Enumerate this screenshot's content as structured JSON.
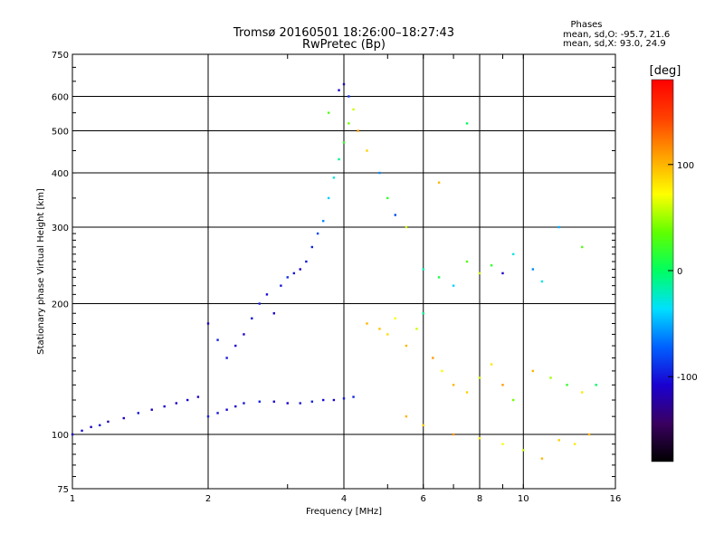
{
  "chart_data": {
    "type": "scatter",
    "title": "Tromsø 20160501 18:26:00–18:27:43",
    "subtitle": "RwPretec (Bp)",
    "xlabel": "Frequency [MHz]",
    "ylabel": "Stationary phase Virtual Height [km]",
    "x_scale": "log",
    "y_scale": "log",
    "xlim": [
      1,
      16
    ],
    "ylim": [
      75,
      750
    ],
    "x_ticks": [
      "1",
      "2",
      "4",
      "6",
      "8",
      "10",
      "16"
    ],
    "x_tick_values": [
      1,
      2,
      4,
      6,
      8,
      10,
      16
    ],
    "y_ticks": [
      "75",
      "100",
      "200",
      "300",
      "400",
      "500",
      "600",
      "750"
    ],
    "y_tick_values": [
      75,
      100,
      200,
      300,
      400,
      500,
      600,
      750
    ],
    "grid": true,
    "phase_stats": {
      "heading": "Phases",
      "o_line": "mean, sd,O: -95.7, 21.6",
      "x_line": "mean, sd,X:  93.0, 24.9"
    },
    "colorbar": {
      "label": "[deg]",
      "range": [
        -180,
        180
      ],
      "tick_labels": [
        "100",
        "0",
        "-100"
      ],
      "tick_values": [
        100,
        0,
        -100
      ],
      "colormap": [
        "#000000",
        "#3a0060",
        "#1a00d0",
        "#0060ff",
        "#00e0ff",
        "#00ff60",
        "#60ff00",
        "#ffff00",
        "#ffa000",
        "#ff4000",
        "#ff0000"
      ]
    },
    "series": [
      {
        "description": "dense low trace",
        "points": [
          [
            1.0,
            100,
            -110
          ],
          [
            1.05,
            102,
            -105
          ],
          [
            1.1,
            104,
            -115
          ],
          [
            1.15,
            105,
            -100
          ],
          [
            1.2,
            107,
            -120
          ],
          [
            1.3,
            109,
            -110
          ],
          [
            1.4,
            112,
            -100
          ],
          [
            1.5,
            114,
            -115
          ],
          [
            1.6,
            116,
            -108
          ],
          [
            1.7,
            118,
            -112
          ],
          [
            1.8,
            120,
            -105
          ],
          [
            1.9,
            122,
            -110
          ],
          [
            2.0,
            110,
            -95
          ],
          [
            2.1,
            112,
            -100
          ],
          [
            2.2,
            114,
            -105
          ],
          [
            2.3,
            116,
            -110
          ],
          [
            2.4,
            118,
            -100
          ],
          [
            2.6,
            119,
            -95
          ],
          [
            2.8,
            119,
            -105
          ],
          [
            3.0,
            118,
            -110
          ],
          [
            3.2,
            118,
            -100
          ],
          [
            3.4,
            119,
            -95
          ],
          [
            3.6,
            120,
            -105
          ],
          [
            3.8,
            120,
            -110
          ],
          [
            4.0,
            121,
            -100
          ],
          [
            4.2,
            122,
            -95
          ]
        ]
      },
      {
        "description": "rising main trace",
        "points": [
          [
            2.0,
            180,
            -110
          ],
          [
            2.1,
            165,
            -95
          ],
          [
            2.2,
            150,
            -100
          ],
          [
            2.3,
            160,
            -105
          ],
          [
            2.4,
            170,
            -110
          ],
          [
            2.5,
            185,
            -100
          ],
          [
            2.6,
            200,
            -95
          ],
          [
            2.7,
            210,
            -105
          ],
          [
            2.8,
            190,
            -110
          ],
          [
            2.9,
            220,
            -100
          ],
          [
            3.0,
            230,
            -90
          ],
          [
            3.1,
            235,
            -100
          ],
          [
            3.2,
            240,
            -110
          ],
          [
            3.3,
            250,
            -100
          ],
          [
            3.4,
            270,
            -95
          ],
          [
            3.5,
            290,
            -80
          ],
          [
            3.6,
            310,
            -60
          ],
          [
            3.7,
            350,
            -40
          ],
          [
            3.8,
            390,
            -30
          ],
          [
            3.9,
            430,
            -10
          ],
          [
            4.0,
            470,
            20
          ],
          [
            4.1,
            520,
            40
          ],
          [
            4.2,
            560,
            60
          ]
        ]
      },
      {
        "description": "high scattered points",
        "points": [
          [
            3.9,
            620,
            -110
          ],
          [
            4.0,
            640,
            -120
          ],
          [
            4.1,
            600,
            -90
          ],
          [
            3.7,
            550,
            30
          ],
          [
            4.3,
            500,
            110
          ],
          [
            4.5,
            450,
            90
          ],
          [
            4.8,
            400,
            -60
          ],
          [
            5.0,
            350,
            20
          ],
          [
            5.2,
            320,
            -80
          ],
          [
            5.5,
            300,
            60
          ],
          [
            6.5,
            380,
            100
          ],
          [
            7.5,
            520,
            0
          ],
          [
            9.5,
            260,
            -30
          ],
          [
            12.0,
            300,
            -50
          ],
          [
            13.5,
            270,
            30
          ]
        ]
      },
      {
        "description": "mid-frequency cluster",
        "points": [
          [
            4.5,
            180,
            100
          ],
          [
            4.8,
            175,
            95
          ],
          [
            5.0,
            170,
            85
          ],
          [
            5.2,
            185,
            70
          ],
          [
            5.5,
            160,
            100
          ],
          [
            5.8,
            175,
            60
          ],
          [
            6.0,
            190,
            -10
          ],
          [
            6.3,
            150,
            110
          ],
          [
            6.6,
            140,
            70
          ],
          [
            7.0,
            130,
            100
          ],
          [
            7.5,
            125,
            90
          ],
          [
            8.0,
            135,
            60
          ],
          [
            8.5,
            145,
            80
          ],
          [
            9.0,
            130,
            110
          ],
          [
            9.5,
            120,
            40
          ],
          [
            10.5,
            140,
            100
          ],
          [
            11.5,
            135,
            50
          ],
          [
            12.5,
            130,
            20
          ],
          [
            13.5,
            125,
            80
          ],
          [
            14.5,
            130,
            0
          ]
        ]
      },
      {
        "description": "upper mid cluster",
        "points": [
          [
            6.0,
            240,
            -20
          ],
          [
            6.5,
            230,
            10
          ],
          [
            7.0,
            220,
            -40
          ],
          [
            7.5,
            250,
            30
          ],
          [
            8.0,
            235,
            60
          ],
          [
            8.5,
            245,
            20
          ],
          [
            9.0,
            235,
            -110
          ],
          [
            10.5,
            240,
            -60
          ],
          [
            11.0,
            225,
            -30
          ]
        ]
      },
      {
        "description": "lower tail",
        "points": [
          [
            5.5,
            110,
            100
          ],
          [
            6.0,
            105,
            90
          ],
          [
            7.0,
            100,
            110
          ],
          [
            8.0,
            98,
            80
          ],
          [
            9.0,
            95,
            70
          ],
          [
            10.0,
            92,
            60
          ],
          [
            11.0,
            88,
            100
          ],
          [
            12.0,
            97,
            90
          ],
          [
            13.0,
            95,
            80
          ],
          [
            14.0,
            100,
            100
          ]
        ]
      }
    ]
  }
}
